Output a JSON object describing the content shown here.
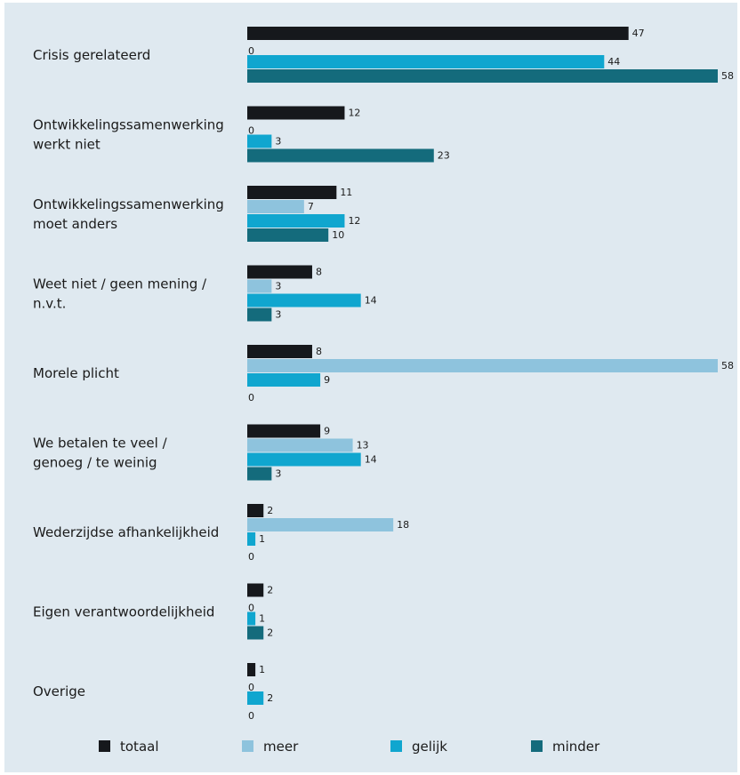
{
  "chart_data": {
    "type": "bar",
    "orientation": "horizontal",
    "categories": [
      [
        "Crisis gerelateerd"
      ],
      [
        "Ontwikkelingssamenwerking",
        "werkt niet"
      ],
      [
        "Ontwikkelingssamenwerking",
        "moet anders"
      ],
      [
        "Weet niet / geen mening /",
        "n.v.t."
      ],
      [
        "Morele plicht"
      ],
      [
        "We betalen te veel /",
        "genoeg / te weinig"
      ],
      [
        "Wederzijdse afhankelijkheid"
      ],
      [
        "Eigen verantwoordelijkheid"
      ],
      [
        "Overige"
      ]
    ],
    "series": [
      {
        "name": "totaal",
        "color": "#16181c",
        "values": [
          47,
          12,
          11,
          8,
          8,
          9,
          2,
          2,
          1
        ]
      },
      {
        "name": "meer",
        "color": "#8ec3dd",
        "values": [
          0,
          0,
          7,
          3,
          58,
          13,
          18,
          0,
          0
        ]
      },
      {
        "name": "gelijk",
        "color": "#10a6cf",
        "values": [
          44,
          3,
          12,
          14,
          9,
          14,
          1,
          1,
          2
        ]
      },
      {
        "name": "minder",
        "color": "#146b7c",
        "values": [
          58,
          23,
          10,
          3,
          0,
          3,
          0,
          2,
          0
        ]
      }
    ],
    "xlim": [
      0,
      58
    ],
    "legend_position": "bottom",
    "background": "#dfe9f0"
  }
}
